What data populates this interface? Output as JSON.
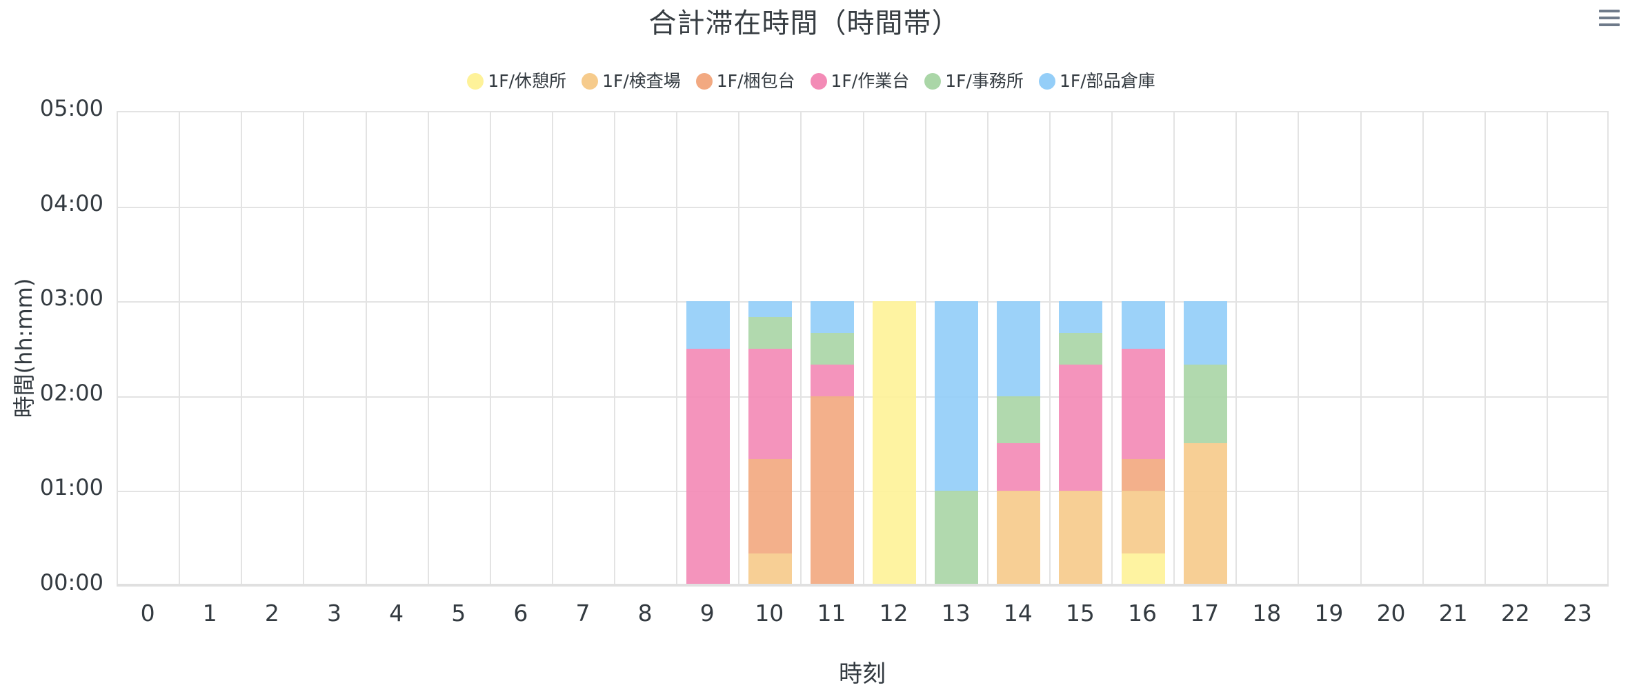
{
  "header": {
    "title": "合計滞在時間（時間帯）",
    "menu_icon": "hamburger-menu-icon"
  },
  "legend": [
    {
      "label": "1F/休憩所",
      "color": "#FEF299"
    },
    {
      "label": "1F/検査場",
      "color": "#F6CB8C"
    },
    {
      "label": "1F/梱包台",
      "color": "#F2A981"
    },
    {
      "label": "1F/作業台",
      "color": "#F38BB6"
    },
    {
      "label": "1F/事務所",
      "color": "#AAD6A7"
    },
    {
      "label": "1F/部品倉庫",
      "color": "#94CEF8"
    }
  ],
  "axes": {
    "ytitle": "時間(hh:mm)",
    "xtitle": "時刻",
    "yticks": [
      "00:00",
      "01:00",
      "02:00",
      "03:00",
      "04:00",
      "05:00"
    ],
    "xticks": [
      "0",
      "1",
      "2",
      "3",
      "4",
      "5",
      "6",
      "7",
      "8",
      "9",
      "10",
      "11",
      "12",
      "13",
      "14",
      "15",
      "16",
      "17",
      "18",
      "19",
      "20",
      "21",
      "22",
      "23"
    ]
  },
  "chart_data": {
    "type": "bar",
    "stacked": true,
    "title": "合計滞在時間（時間帯）",
    "xlabel": "時刻",
    "ylabel": "時間(hh:mm)",
    "unit": "minutes",
    "ylim": [
      0,
      300
    ],
    "ytick_labels": [
      "00:00",
      "01:00",
      "02:00",
      "03:00",
      "04:00",
      "05:00"
    ],
    "grid": true,
    "legend_position": "top",
    "categories": [
      "0",
      "1",
      "2",
      "3",
      "4",
      "5",
      "6",
      "7",
      "8",
      "9",
      "10",
      "11",
      "12",
      "13",
      "14",
      "15",
      "16",
      "17",
      "18",
      "19",
      "20",
      "21",
      "22",
      "23"
    ],
    "series": [
      {
        "name": "1F/休憩所",
        "color": "#FEF299",
        "values": [
          0,
          0,
          0,
          0,
          0,
          0,
          0,
          0,
          0,
          0,
          0,
          0,
          180,
          0,
          0,
          0,
          20,
          0,
          0,
          0,
          0,
          0,
          0,
          0
        ]
      },
      {
        "name": "1F/検査場",
        "color": "#F6CB8C",
        "values": [
          0,
          0,
          0,
          0,
          0,
          0,
          0,
          0,
          0,
          0,
          20,
          0,
          0,
          0,
          60,
          60,
          40,
          90,
          0,
          0,
          0,
          0,
          0,
          0
        ]
      },
      {
        "name": "1F/梱包台",
        "color": "#F2A981",
        "values": [
          0,
          0,
          0,
          0,
          0,
          0,
          0,
          0,
          0,
          0,
          60,
          120,
          0,
          0,
          0,
          0,
          20,
          0,
          0,
          0,
          0,
          0,
          0,
          0
        ]
      },
      {
        "name": "1F/作業台",
        "color": "#F38BB6",
        "values": [
          0,
          0,
          0,
          0,
          0,
          0,
          0,
          0,
          0,
          150,
          70,
          20,
          0,
          0,
          30,
          80,
          70,
          0,
          0,
          0,
          0,
          0,
          0,
          0
        ]
      },
      {
        "name": "1F/事務所",
        "color": "#AAD6A7",
        "values": [
          0,
          0,
          0,
          0,
          0,
          0,
          0,
          0,
          0,
          0,
          20,
          20,
          0,
          60,
          30,
          20,
          0,
          50,
          0,
          0,
          0,
          0,
          0,
          0
        ]
      },
      {
        "name": "1F/部品倉庫",
        "color": "#94CEF8",
        "values": [
          0,
          0,
          0,
          0,
          0,
          0,
          0,
          0,
          0,
          30,
          10,
          20,
          0,
          120,
          60,
          20,
          30,
          40,
          0,
          0,
          0,
          0,
          0,
          0
        ]
      }
    ]
  }
}
